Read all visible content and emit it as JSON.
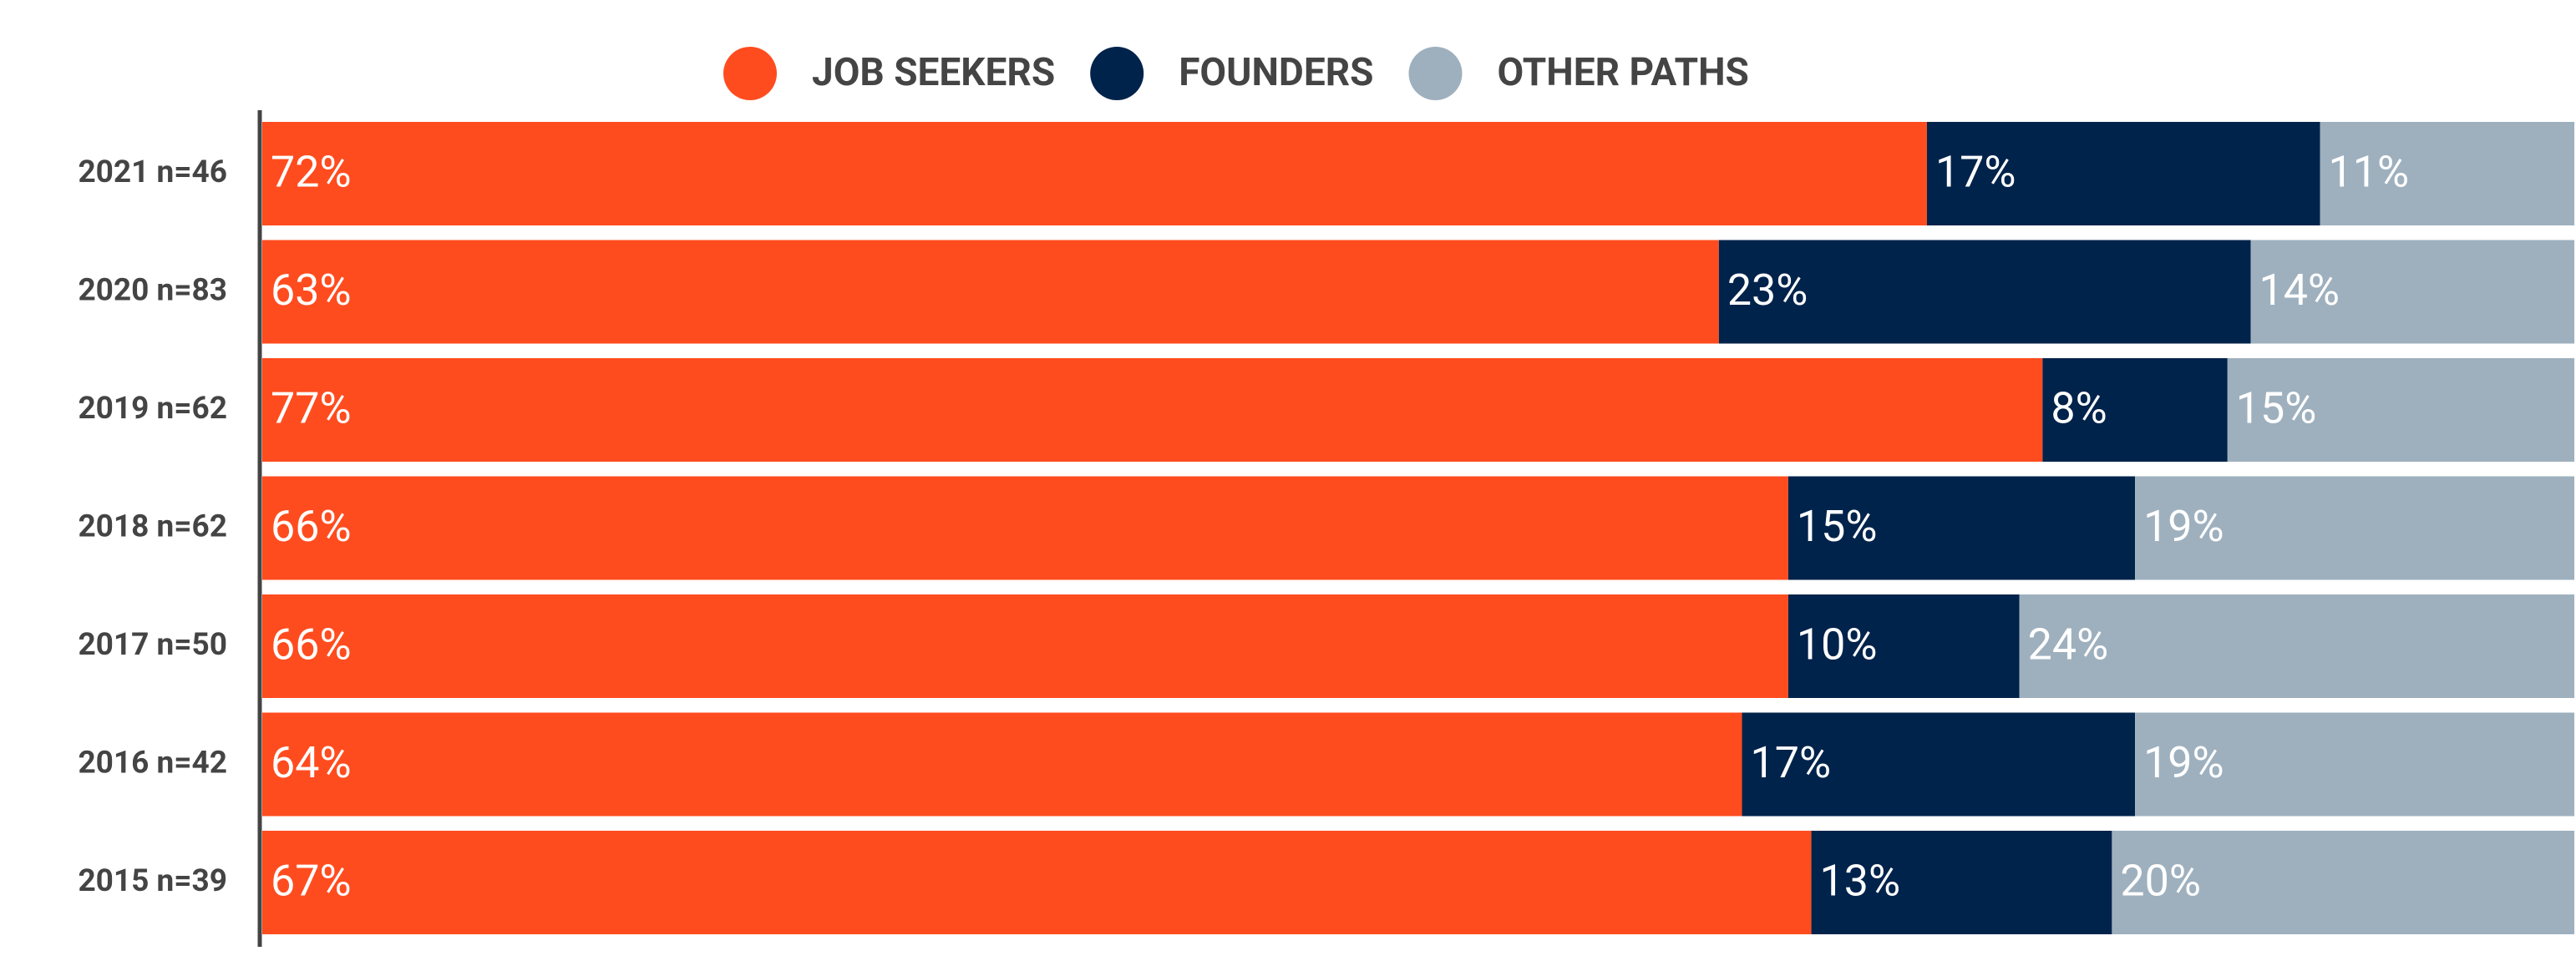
{
  "chart_data": {
    "type": "stacked-bar-horizontal",
    "categories": [
      "2021 n=46",
      "2020 n=83",
      "2019 n=62",
      "2018 n=62",
      "2017 n=50",
      "2016 n=42",
      "2015 n=39"
    ],
    "series": [
      {
        "name": "JOB SEEKERS",
        "color": "#ff4c1f",
        "values": [
          72,
          63,
          77,
          66,
          66,
          64,
          67
        ],
        "value_labels": [
          "72%",
          "63%",
          "77%",
          "66%",
          "66%",
          "64%",
          "67%"
        ]
      },
      {
        "name": "FOUNDERS",
        "color": "#00234b",
        "values": [
          17,
          23,
          8,
          15,
          10,
          17,
          13
        ],
        "value_labels": [
          "17%",
          "23%",
          "8%",
          "15%",
          "10%",
          "17%",
          "13%"
        ]
      },
      {
        "name": "OTHER PATHS",
        "color": "#9eb0be",
        "values": [
          11,
          14,
          15,
          19,
          24,
          19,
          20
        ],
        "value_labels": [
          "11%",
          "14%",
          "15%",
          "19%",
          "24%",
          "19%",
          "20%"
        ]
      }
    ],
    "xlim": [
      0,
      100
    ],
    "legend": "top"
  }
}
